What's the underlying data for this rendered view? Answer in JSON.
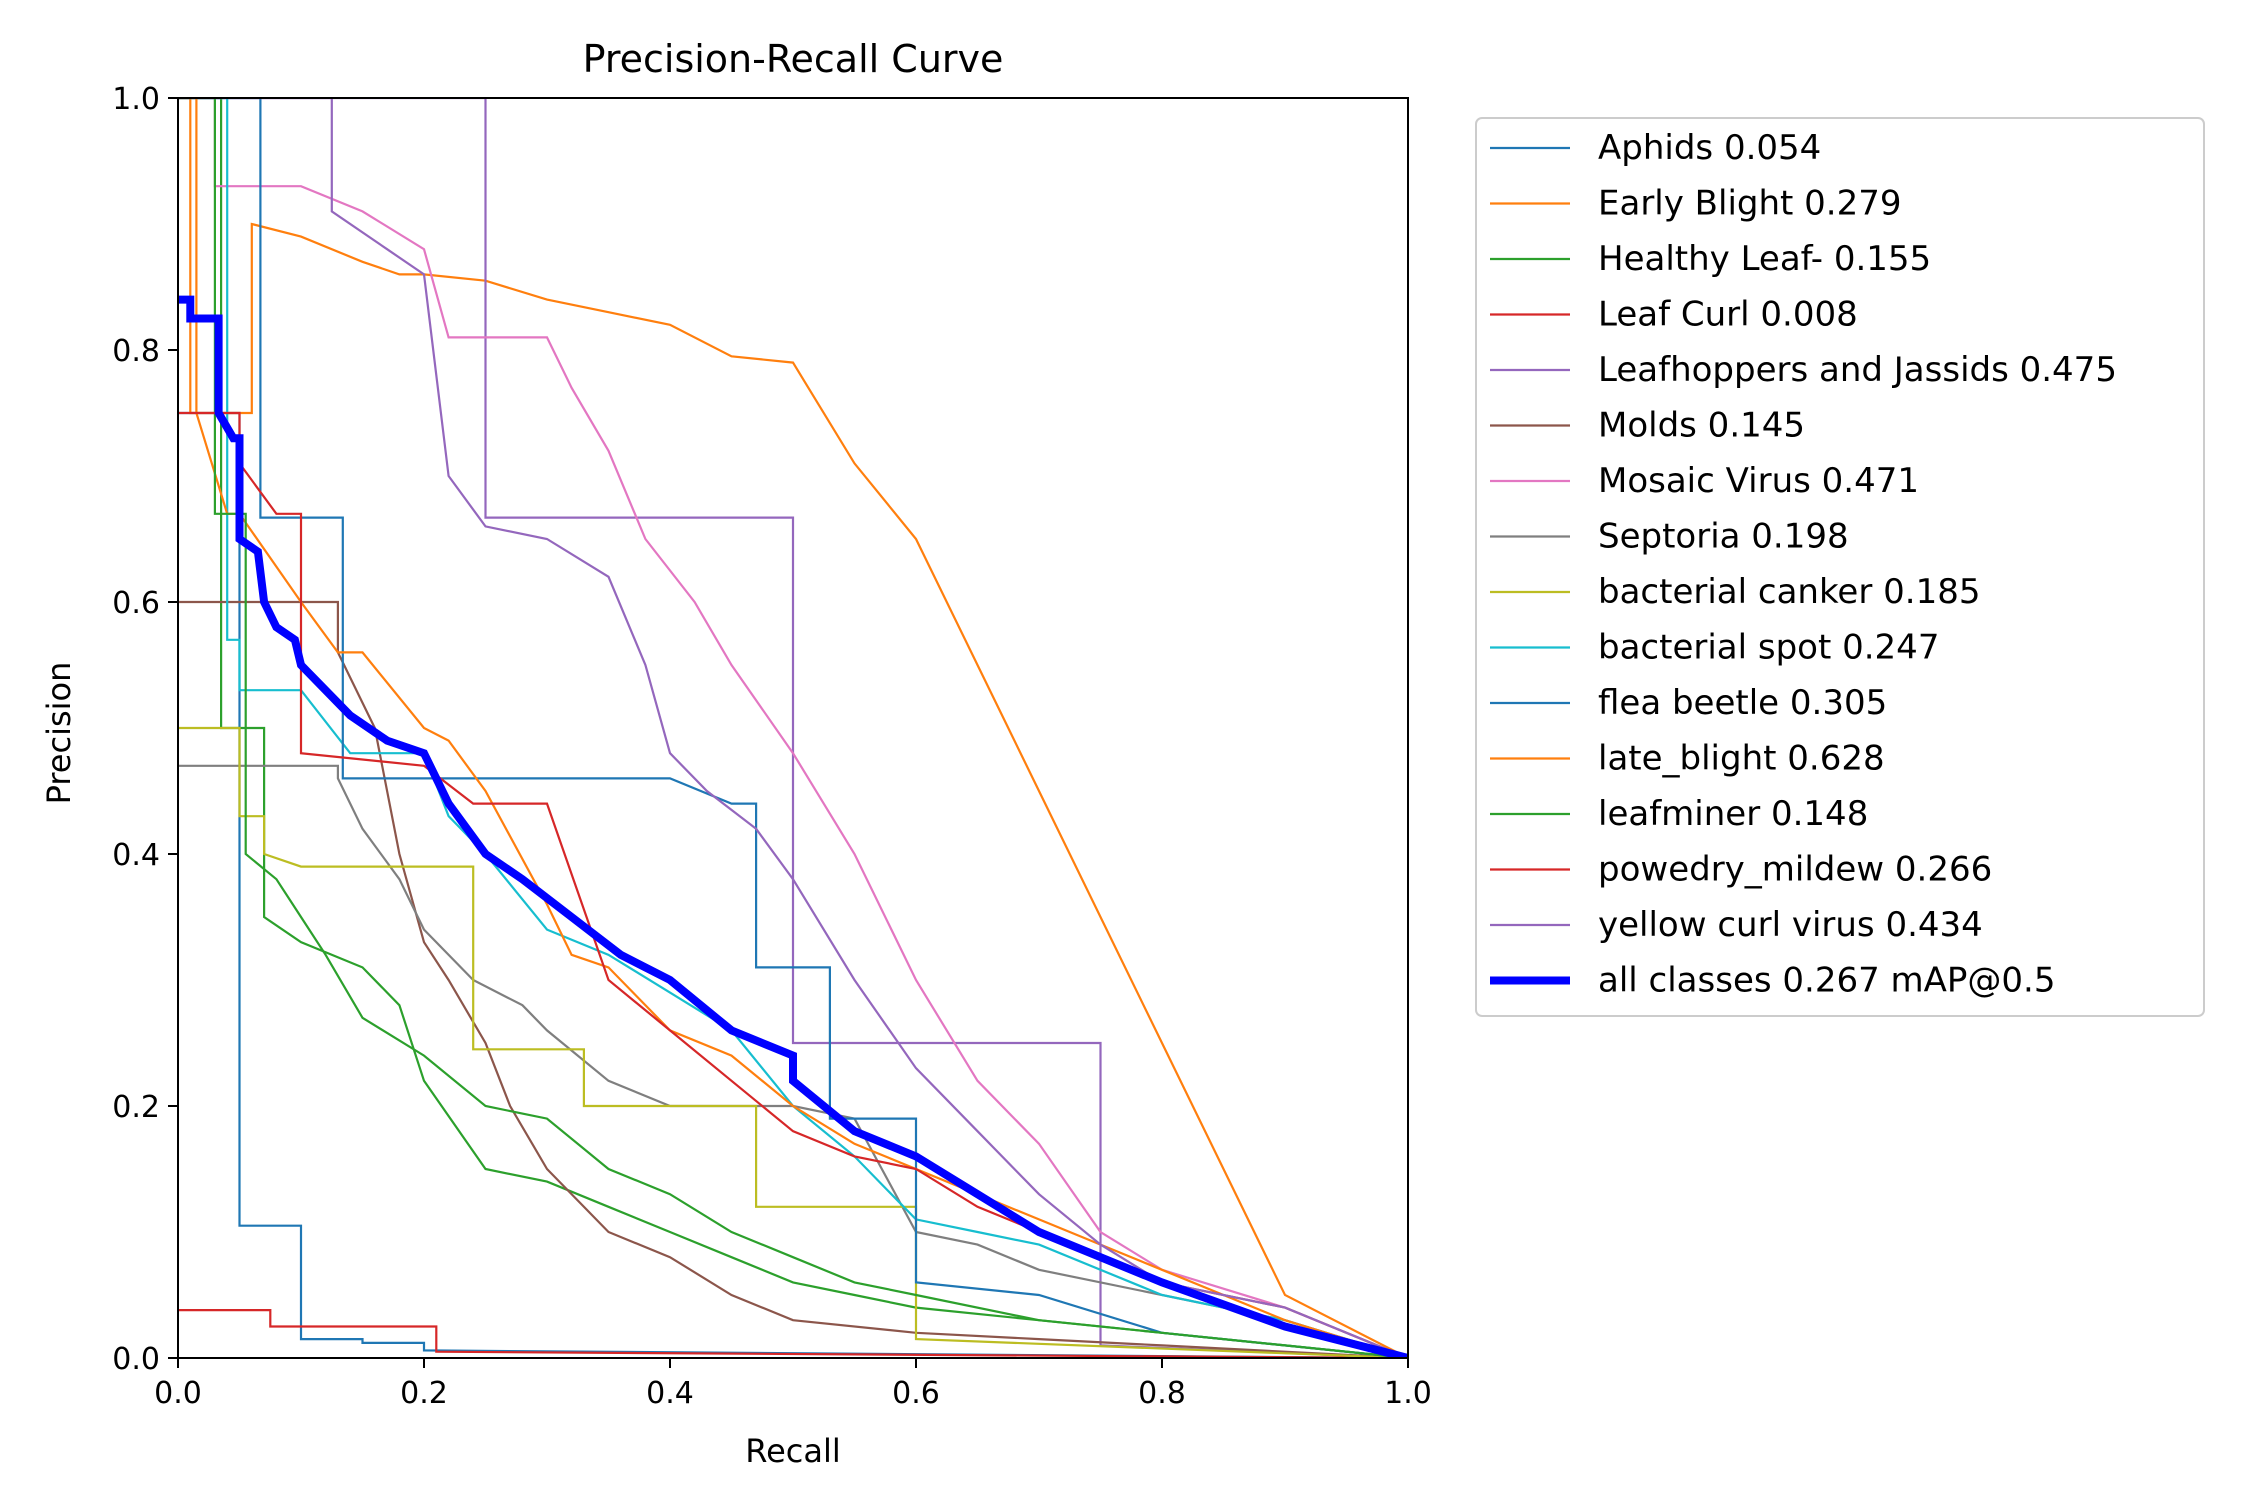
{
  "chart_data": {
    "type": "line",
    "title": "Precision-Recall Curve",
    "xlabel": "Recall",
    "ylabel": "Precision",
    "xlim": [
      0.0,
      1.0
    ],
    "ylim": [
      0.0,
      1.0
    ],
    "xticks": [
      "0.0",
      "0.2",
      "0.4",
      "0.6",
      "0.8",
      "1.0"
    ],
    "yticks": [
      "0.0",
      "0.2",
      "0.4",
      "0.6",
      "0.8",
      "1.0"
    ],
    "grid": false,
    "legend_position": "outside-right",
    "series": [
      {
        "name": "Aphids 0.054",
        "color": "#1f77b4",
        "width": "thin",
        "x": [
          0,
          0.05,
          0.05,
          0.1,
          0.1,
          0.15,
          0.15,
          0.2,
          0.2,
          1.0
        ],
        "y": [
          0.75,
          0.75,
          0.105,
          0.105,
          0.015,
          0.015,
          0.012,
          0.012,
          0.006,
          0.0
        ]
      },
      {
        "name": "Early Blight 0.279",
        "color": "#ff7f0e",
        "width": "thin",
        "x": [
          0,
          0.01,
          0.01,
          0.06,
          0.06,
          0.1,
          0.15,
          0.18,
          0.2,
          0.25,
          0.3,
          0.35,
          0.4,
          0.45,
          0.5,
          0.55,
          0.6,
          0.65,
          0.7,
          0.8,
          0.9,
          1.0
        ],
        "y": [
          1.0,
          1.0,
          0.75,
          0.75,
          0.9,
          0.89,
          0.87,
          0.86,
          0.86,
          0.855,
          0.84,
          0.83,
          0.82,
          0.795,
          0.79,
          0.71,
          0.65,
          0.55,
          0.45,
          0.25,
          0.05,
          0.0
        ]
      },
      {
        "name": "Healthy Leaf- 0.155",
        "color": "#2ca02c",
        "width": "thin",
        "x": [
          0,
          0.035,
          0.035,
          0.07,
          0.07,
          0.1,
          0.15,
          0.18,
          0.2,
          0.25,
          0.3,
          0.35,
          0.4,
          0.45,
          0.5,
          0.55,
          0.6,
          0.7,
          0.8,
          0.9,
          1.0
        ],
        "y": [
          1.0,
          1.0,
          0.5,
          0.5,
          0.35,
          0.33,
          0.31,
          0.28,
          0.22,
          0.15,
          0.14,
          0.12,
          0.1,
          0.08,
          0.06,
          0.05,
          0.04,
          0.03,
          0.02,
          0.01,
          0.0
        ]
      },
      {
        "name": "Leaf Curl 0.008",
        "color": "#d62728",
        "width": "thin",
        "x": [
          0,
          0.075,
          0.075,
          0.21,
          0.21,
          1.0
        ],
        "y": [
          0.038,
          0.038,
          0.025,
          0.025,
          0.005,
          0.0
        ]
      },
      {
        "name": "Leafhoppers and Jassids 0.475",
        "color": "#9467bd",
        "width": "thin",
        "x": [
          0,
          0.25,
          0.25,
          0.5,
          0.5,
          0.75,
          0.75,
          1.0
        ],
        "y": [
          1.0,
          1.0,
          0.667,
          0.667,
          0.25,
          0.25,
          0.01,
          0.0
        ]
      },
      {
        "name": "Molds 0.145",
        "color": "#8c564b",
        "width": "thin",
        "x": [
          0,
          0.13,
          0.13,
          0.16,
          0.18,
          0.2,
          0.22,
          0.25,
          0.27,
          0.3,
          0.35,
          0.4,
          0.45,
          0.5,
          0.6,
          0.7,
          0.8,
          1.0
        ],
        "y": [
          0.6,
          0.6,
          0.56,
          0.5,
          0.4,
          0.33,
          0.3,
          0.25,
          0.2,
          0.15,
          0.1,
          0.08,
          0.05,
          0.03,
          0.02,
          0.015,
          0.01,
          0.0
        ]
      },
      {
        "name": "Mosaic Virus 0.471",
        "color": "#e377c2",
        "width": "thin",
        "x": [
          0,
          0.03,
          0.03,
          0.1,
          0.15,
          0.2,
          0.22,
          0.3,
          0.32,
          0.35,
          0.38,
          0.42,
          0.45,
          0.5,
          0.55,
          0.6,
          0.65,
          0.7,
          0.75,
          0.8,
          0.9,
          1.0
        ],
        "y": [
          1.0,
          1.0,
          0.93,
          0.93,
          0.91,
          0.88,
          0.81,
          0.81,
          0.77,
          0.72,
          0.65,
          0.6,
          0.55,
          0.48,
          0.4,
          0.3,
          0.22,
          0.17,
          0.1,
          0.07,
          0.04,
          0.0
        ]
      },
      {
        "name": "Septoria 0.198",
        "color": "#7f7f7f",
        "width": "thin",
        "x": [
          0,
          0.13,
          0.13,
          0.15,
          0.18,
          0.2,
          0.24,
          0.28,
          0.3,
          0.35,
          0.4,
          0.45,
          0.5,
          0.55,
          0.6,
          0.65,
          0.7,
          0.8,
          0.9,
          1.0
        ],
        "y": [
          0.47,
          0.47,
          0.46,
          0.42,
          0.38,
          0.34,
          0.3,
          0.28,
          0.26,
          0.22,
          0.2,
          0.2,
          0.2,
          0.19,
          0.1,
          0.09,
          0.07,
          0.05,
          0.03,
          0.0
        ]
      },
      {
        "name": "bacterial canker 0.185",
        "color": "#bcbd22",
        "width": "thin",
        "x": [
          0,
          0.05,
          0.05,
          0.07,
          0.07,
          0.1,
          0.14,
          0.24,
          0.24,
          0.33,
          0.33,
          0.47,
          0.47,
          0.6,
          0.6,
          1.0
        ],
        "y": [
          0.5,
          0.5,
          0.43,
          0.43,
          0.4,
          0.39,
          0.39,
          0.39,
          0.245,
          0.245,
          0.2,
          0.2,
          0.12,
          0.12,
          0.015,
          0.0
        ]
      },
      {
        "name": "bacterial spot 0.247",
        "color": "#17becf",
        "width": "thin",
        "x": [
          0,
          0.04,
          0.04,
          0.05,
          0.05,
          0.07,
          0.07,
          0.1,
          0.14,
          0.2,
          0.22,
          0.25,
          0.3,
          0.35,
          0.4,
          0.45,
          0.5,
          0.55,
          0.6,
          0.65,
          0.7,
          0.8,
          0.9,
          1.0
        ],
        "y": [
          1.0,
          1.0,
          0.57,
          0.57,
          0.53,
          0.53,
          0.53,
          0.53,
          0.48,
          0.48,
          0.43,
          0.4,
          0.34,
          0.32,
          0.29,
          0.26,
          0.2,
          0.16,
          0.11,
          0.1,
          0.09,
          0.05,
          0.03,
          0.0
        ]
      },
      {
        "name": "flea beetle 0.305",
        "color": "#1f77b4",
        "width": "thin",
        "x": [
          0,
          0.067,
          0.067,
          0.1,
          0.1,
          0.134,
          0.134,
          0.4,
          0.45,
          0.47,
          0.47,
          0.53,
          0.53,
          0.6,
          0.6,
          0.7,
          0.8,
          1.0
        ],
        "y": [
          1.0,
          1.0,
          0.667,
          0.667,
          0.667,
          0.667,
          0.46,
          0.46,
          0.44,
          0.44,
          0.31,
          0.31,
          0.19,
          0.19,
          0.06,
          0.05,
          0.02,
          0.0
        ]
      },
      {
        "name": "late_blight 0.628",
        "color": "#ff7f0e",
        "width": "thin",
        "x": [
          0,
          0.015,
          0.015,
          0.04,
          0.05,
          0.1,
          0.13,
          0.15,
          0.2,
          0.22,
          0.25,
          0.3,
          0.32,
          0.35,
          0.4,
          0.45,
          0.5,
          0.55,
          0.6,
          0.65,
          0.7,
          0.75,
          0.8,
          0.85,
          0.9,
          1.0
        ],
        "y": [
          1.0,
          1.0,
          0.75,
          0.67,
          0.67,
          0.6,
          0.56,
          0.56,
          0.5,
          0.49,
          0.45,
          0.36,
          0.32,
          0.31,
          0.26,
          0.24,
          0.2,
          0.17,
          0.15,
          0.13,
          0.11,
          0.09,
          0.07,
          0.05,
          0.03,
          0.0
        ]
      },
      {
        "name": "leafminer 0.148",
        "color": "#2ca02c",
        "width": "thin",
        "x": [
          0,
          0.03,
          0.03,
          0.055,
          0.055,
          0.08,
          0.1,
          0.12,
          0.15,
          0.2,
          0.25,
          0.3,
          0.35,
          0.4,
          0.45,
          0.5,
          0.55,
          0.6,
          0.7,
          0.8,
          0.9,
          1.0
        ],
        "y": [
          1.0,
          1.0,
          0.67,
          0.67,
          0.4,
          0.38,
          0.35,
          0.32,
          0.27,
          0.24,
          0.2,
          0.19,
          0.15,
          0.13,
          0.1,
          0.08,
          0.06,
          0.05,
          0.03,
          0.02,
          0.01,
          0.0
        ]
      },
      {
        "name": "powedry_mildew 0.266",
        "color": "#d62728",
        "width": "thin",
        "x": [
          0,
          0.05,
          0.05,
          0.08,
          0.1,
          0.1,
          0.2,
          0.24,
          0.3,
          0.35,
          0.4,
          0.45,
          0.5,
          0.55,
          0.6,
          0.65,
          0.7,
          0.75,
          0.8,
          0.9,
          1.0
        ],
        "y": [
          0.75,
          0.75,
          0.71,
          0.67,
          0.67,
          0.48,
          0.47,
          0.44,
          0.44,
          0.3,
          0.26,
          0.22,
          0.18,
          0.16,
          0.15,
          0.12,
          0.1,
          0.08,
          0.06,
          0.04,
          0.0
        ]
      },
      {
        "name": "yellow curl virus 0.434",
        "color": "#9467bd",
        "width": "thin",
        "x": [
          0,
          0.125,
          0.125,
          0.17,
          0.2,
          0.22,
          0.25,
          0.3,
          0.35,
          0.38,
          0.4,
          0.43,
          0.47,
          0.5,
          0.55,
          0.6,
          0.65,
          0.7,
          0.75,
          0.8,
          0.9,
          1.0
        ],
        "y": [
          1.0,
          1.0,
          0.91,
          0.88,
          0.86,
          0.7,
          0.66,
          0.65,
          0.62,
          0.55,
          0.48,
          0.45,
          0.42,
          0.38,
          0.3,
          0.23,
          0.18,
          0.13,
          0.09,
          0.06,
          0.04,
          0.0
        ]
      },
      {
        "name": "all classes 0.267 mAP@0.5",
        "color": "#0000ff",
        "width": "thick",
        "x": [
          0,
          0.01,
          0.01,
          0.033,
          0.033,
          0.045,
          0.05,
          0.05,
          0.065,
          0.07,
          0.08,
          0.095,
          0.1,
          0.13,
          0.14,
          0.17,
          0.2,
          0.22,
          0.25,
          0.28,
          0.32,
          0.36,
          0.4,
          0.45,
          0.5,
          0.5,
          0.55,
          0.6,
          0.65,
          0.7,
          0.75,
          0.8,
          0.9,
          1.0
        ],
        "y": [
          0.84,
          0.84,
          0.825,
          0.825,
          0.75,
          0.73,
          0.73,
          0.65,
          0.64,
          0.6,
          0.58,
          0.57,
          0.55,
          0.52,
          0.51,
          0.49,
          0.48,
          0.44,
          0.4,
          0.38,
          0.35,
          0.32,
          0.3,
          0.26,
          0.24,
          0.22,
          0.18,
          0.16,
          0.13,
          0.1,
          0.08,
          0.06,
          0.025,
          0.0
        ]
      }
    ]
  }
}
